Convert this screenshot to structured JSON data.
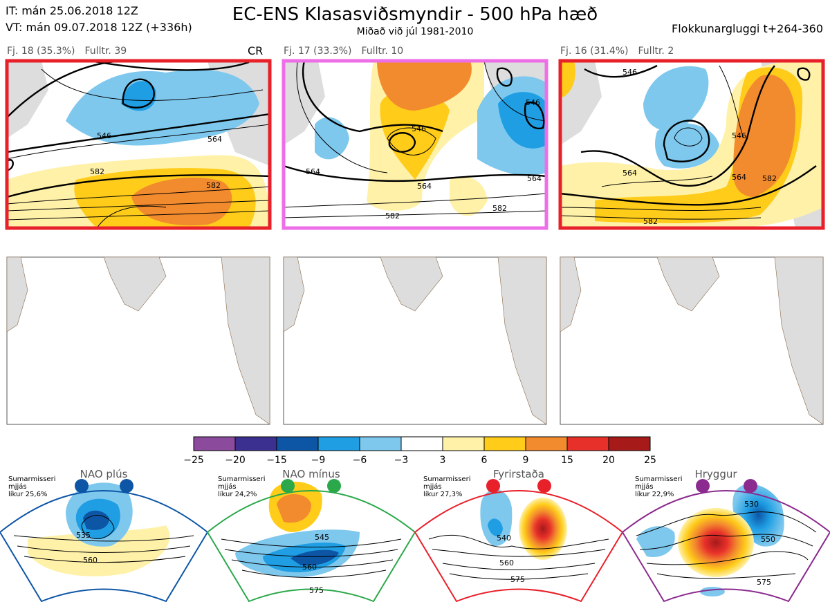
{
  "header": {
    "init_time": "IT: mán 25.06.2018 12Z",
    "valid_time": "VT: mán 09.07.2018 12Z  (+336h)",
    "title": "EC-ENS Klasasviðsmyndir - 500 hPa hæð",
    "subtitle": "Miðað við júl 1981-2010",
    "window": "Flokkunargluggi t+264-360"
  },
  "clusters": [
    {
      "label": "Fj. 18 (35.3%)",
      "rep": "Fulltr. 39",
      "tag": "CR",
      "frame_color": "#e8202a",
      "contours": [
        "546",
        "564",
        "582",
        "582"
      ]
    },
    {
      "label": "Fj. 17 (33.3%)",
      "rep": "Fulltr. 10",
      "tag": "",
      "frame_color": "#ee6ee8",
      "contours": [
        "546",
        "564",
        "564",
        "564",
        "582",
        "582",
        "546"
      ]
    },
    {
      "label": "Fj. 16 (31.4%)",
      "rep": "Fulltr. 2",
      "tag": "",
      "frame_color": "#e8202a",
      "contours": [
        "546",
        "564",
        "564",
        "546",
        "582",
        "582"
      ]
    }
  ],
  "colorbar": {
    "ticks": [
      "−25",
      "−20",
      "−15",
      "−9",
      "−6",
      "−3",
      "3",
      "6",
      "9",
      "15",
      "20",
      "25"
    ],
    "colors": [
      "#8b4a9c",
      "#3b2f8f",
      "#0d56a6",
      "#1f9ee3",
      "#7ec8ee",
      "#ffffff",
      "#fff1a8",
      "#ffcc1a",
      "#f28a2e",
      "#e8302a",
      "#a61a1a"
    ]
  },
  "regimes": [
    {
      "name": "NAO plús",
      "season": "Sumarmisseri",
      "line2": "mjjás",
      "prob": "líkur 25,6%",
      "color": "#0d56a6",
      "contours": [
        "535",
        "560"
      ]
    },
    {
      "name": "NAO mínus",
      "season": "Sumarmisseri",
      "line2": "mjjás",
      "prob": "líkur 24,2%",
      "color": "#2aa84a",
      "contours": [
        "545",
        "560",
        "575"
      ]
    },
    {
      "name": "Fyrirstaða",
      "season": "Sumarmisseri",
      "line2": "mjjás",
      "prob": "líkur 27,3%",
      "color": "#e8202a",
      "contours": [
        "540",
        "560",
        "575"
      ]
    },
    {
      "name": "Hryggur",
      "season": "Sumarmisseri",
      "line2": "mjjás",
      "prob": "líkur 22,9%",
      "color": "#8b2a8f",
      "contours": [
        "530",
        "550",
        "575"
      ]
    }
  ],
  "chart_data": {
    "type": "heatmap",
    "title": "EC-ENS Klasasviðsmyndir - 500 hPa hæð",
    "colorbar_bounds": [
      -25,
      -20,
      -15,
      -9,
      -6,
      -3,
      3,
      6,
      9,
      15,
      20,
      25
    ],
    "panels": [
      "Fj. 18 (35.3%)",
      "Fj. 17 (33.3%)",
      "Fj. 16 (31.4%)",
      "NAO plús",
      "NAO mínus",
      "Fyrirstaða",
      "Hryggur"
    ]
  }
}
